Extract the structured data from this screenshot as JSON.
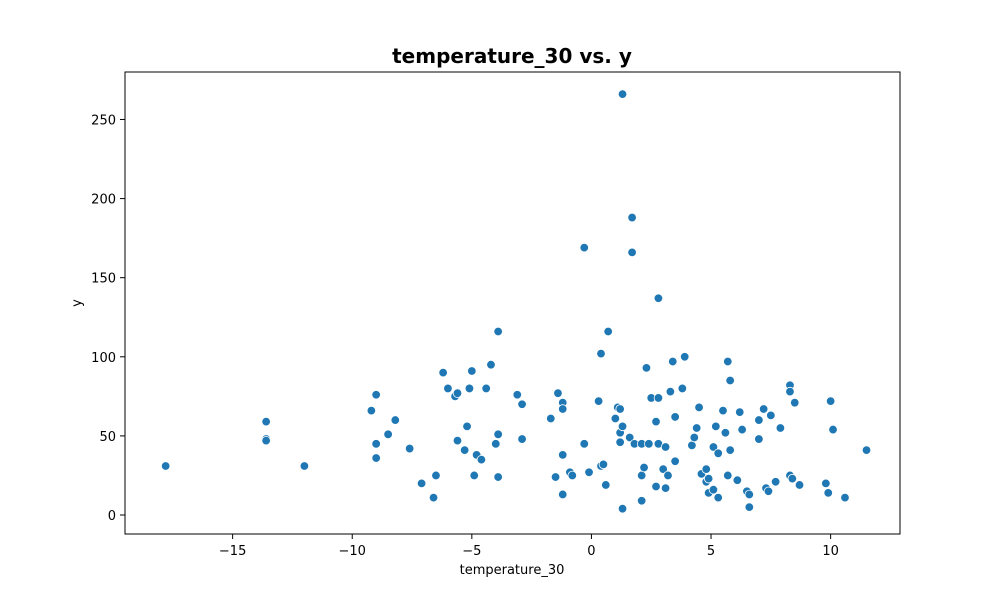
{
  "chart_data": {
    "type": "scatter",
    "title": "temperature_30 vs. y",
    "xlabel": "temperature_30",
    "ylabel": "y",
    "xlim": [
      -19.5,
      12.9
    ],
    "ylim": [
      -12,
      280
    ],
    "xticks": [
      -15,
      -10,
      -5,
      0,
      5,
      10
    ],
    "yticks": [
      0,
      50,
      100,
      150,
      200,
      250
    ],
    "grid": false,
    "legend": "none",
    "marker_color": "#1f77b4",
    "marker_edge_color": "#ffffff",
    "points": [
      [
        -17.8,
        31
      ],
      [
        -13.6,
        59
      ],
      [
        -13.6,
        48
      ],
      [
        -13.6,
        47
      ],
      [
        -12.0,
        31
      ],
      [
        -9.2,
        66
      ],
      [
        -9.0,
        76
      ],
      [
        -9.0,
        45
      ],
      [
        -9.0,
        36
      ],
      [
        -8.5,
        51
      ],
      [
        -8.2,
        60
      ],
      [
        -7.6,
        42
      ],
      [
        -7.1,
        20
      ],
      [
        -6.6,
        11
      ],
      [
        -6.5,
        25
      ],
      [
        -6.2,
        90
      ],
      [
        -6.0,
        80
      ],
      [
        -5.7,
        75
      ],
      [
        -5.6,
        77
      ],
      [
        -5.6,
        47
      ],
      [
        -5.3,
        41
      ],
      [
        -5.2,
        56
      ],
      [
        -5.1,
        80
      ],
      [
        -5.0,
        91
      ],
      [
        -4.9,
        25
      ],
      [
        -4.8,
        38
      ],
      [
        -4.6,
        35
      ],
      [
        -4.4,
        80
      ],
      [
        -4.2,
        95
      ],
      [
        -4.0,
        45
      ],
      [
        -3.9,
        51
      ],
      [
        -3.9,
        116
      ],
      [
        -3.9,
        24
      ],
      [
        -3.1,
        76
      ],
      [
        -2.9,
        70
      ],
      [
        -2.9,
        48
      ],
      [
        -1.7,
        61
      ],
      [
        -1.5,
        24
      ],
      [
        -1.4,
        77
      ],
      [
        -1.2,
        71
      ],
      [
        -1.2,
        67
      ],
      [
        -1.2,
        38
      ],
      [
        -1.2,
        13
      ],
      [
        -0.9,
        27
      ],
      [
        -0.8,
        25
      ],
      [
        -0.3,
        169
      ],
      [
        -0.3,
        45
      ],
      [
        -0.1,
        27
      ],
      [
        0.3,
        72
      ],
      [
        0.4,
        102
      ],
      [
        0.4,
        31
      ],
      [
        0.5,
        32
      ],
      [
        0.6,
        19
      ],
      [
        0.7,
        116
      ],
      [
        1.0,
        61
      ],
      [
        1.1,
        68
      ],
      [
        1.2,
        52
      ],
      [
        1.2,
        46
      ],
      [
        1.2,
        67
      ],
      [
        1.3,
        4
      ],
      [
        1.3,
        266
      ],
      [
        1.3,
        56
      ],
      [
        1.6,
        49
      ],
      [
        1.7,
        188
      ],
      [
        1.7,
        166
      ],
      [
        1.8,
        45
      ],
      [
        2.1,
        45
      ],
      [
        2.1,
        25
      ],
      [
        2.1,
        9
      ],
      [
        2.2,
        30
      ],
      [
        2.3,
        93
      ],
      [
        2.4,
        45
      ],
      [
        2.5,
        74
      ],
      [
        2.7,
        59
      ],
      [
        2.7,
        18
      ],
      [
        2.8,
        137
      ],
      [
        2.8,
        74
      ],
      [
        2.8,
        45
      ],
      [
        3.0,
        29
      ],
      [
        3.1,
        17
      ],
      [
        3.1,
        43
      ],
      [
        3.2,
        25
      ],
      [
        3.3,
        78
      ],
      [
        3.4,
        97
      ],
      [
        3.5,
        62
      ],
      [
        3.5,
        34
      ],
      [
        3.8,
        80
      ],
      [
        3.9,
        100
      ],
      [
        4.2,
        44
      ],
      [
        4.3,
        49
      ],
      [
        4.4,
        55
      ],
      [
        4.5,
        68
      ],
      [
        4.6,
        26
      ],
      [
        4.8,
        29
      ],
      [
        4.8,
        21
      ],
      [
        4.9,
        14
      ],
      [
        4.9,
        23
      ],
      [
        5.1,
        16
      ],
      [
        5.1,
        43
      ],
      [
        5.2,
        56
      ],
      [
        5.3,
        11
      ],
      [
        5.3,
        39
      ],
      [
        5.5,
        66
      ],
      [
        5.6,
        52
      ],
      [
        5.7,
        97
      ],
      [
        5.7,
        25
      ],
      [
        5.8,
        85
      ],
      [
        5.8,
        41
      ],
      [
        6.1,
        22
      ],
      [
        6.2,
        65
      ],
      [
        6.3,
        54
      ],
      [
        6.5,
        15
      ],
      [
        6.6,
        13
      ],
      [
        6.6,
        5
      ],
      [
        7.0,
        48
      ],
      [
        7.0,
        60
      ],
      [
        7.2,
        67
      ],
      [
        7.3,
        17
      ],
      [
        7.4,
        15
      ],
      [
        7.5,
        63
      ],
      [
        7.7,
        21
      ],
      [
        7.9,
        55
      ],
      [
        8.3,
        82
      ],
      [
        8.3,
        25
      ],
      [
        8.3,
        78
      ],
      [
        8.4,
        23
      ],
      [
        8.5,
        71
      ],
      [
        8.7,
        19
      ],
      [
        9.8,
        20
      ],
      [
        9.9,
        14
      ],
      [
        10.0,
        72
      ],
      [
        10.1,
        54
      ],
      [
        10.6,
        11
      ],
      [
        11.5,
        41
      ]
    ]
  }
}
